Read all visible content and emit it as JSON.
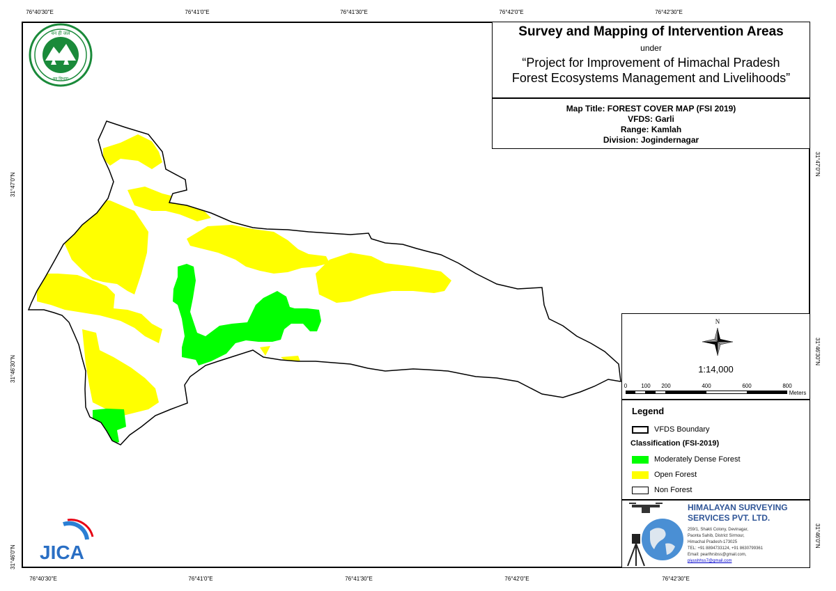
{
  "graticule": {
    "top": [
      "76°40'30\"E",
      "76°41'0\"E",
      "76°41'30\"E",
      "76°42'0\"E",
      "76°42'30\"E"
    ],
    "bottom": [
      "76°40'30\"E",
      "76°41'0\"E",
      "76°41'30\"E",
      "76°42'0\"E",
      "76°42'30\"E"
    ],
    "left": [
      "31°47'0\"N",
      "31°46'30\"N",
      "31°46'0\"N"
    ],
    "right": [
      "31°47'0\"N",
      "31°46'30\"N",
      "31°46'0\"N"
    ]
  },
  "header": {
    "title": "Survey and Mapping of Intervention Areas",
    "under": "under",
    "project_line1": "“Project for Improvement of Himachal Pradesh",
    "project_line2": "Forest Ecosystems Management and Livelihoods”"
  },
  "info": {
    "map_title": "Map Title: FOREST COVER MAP (FSI 2019)",
    "vfds": "VFDS: Garli",
    "range": "Range: Kamlah",
    "division": "Division: Jogindernagar"
  },
  "north_label": "N",
  "scale": {
    "ratio": "1:14,000",
    "ticks": [
      "0",
      "100",
      "200",
      "400",
      "600",
      "800"
    ],
    "unit": "Meters"
  },
  "legend": {
    "title": "Legend",
    "boundary": "VFDS Boundary",
    "classification_title": "Classification (FSI-2019)",
    "classes": [
      {
        "label": "Moderately Dense Forest",
        "color": "#00ff00"
      },
      {
        "label": "Open Forest",
        "color": "#ffff00"
      },
      {
        "label": "Non Forest",
        "color": "#ffffff"
      }
    ]
  },
  "company": {
    "name_line1": "HIMALAYAN SURVEYING",
    "name_line2": "SERVICES PVT. LTD.",
    "address_line1": "259/1, Shakti Colony, Devinagar,",
    "address_line2": "Paonta Sahib, District Sirmour,",
    "address_line3": "Himachal Pradesh-173025",
    "tel": "TEL: +91 8894733124, +91 8630799361",
    "email": "Email: pearlhrsbss@gmail.com,",
    "email2": "piyushhss7@gmail.com"
  },
  "logos": {
    "forest_department_seal": "Himachal Pradesh Forest Department seal",
    "jica_logo": "JICA"
  }
}
